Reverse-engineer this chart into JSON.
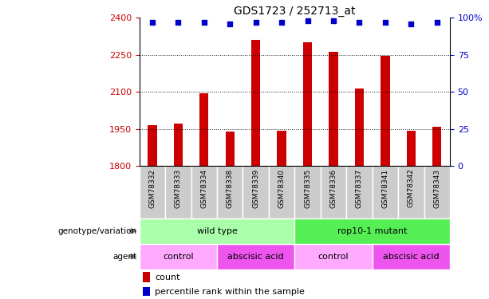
{
  "title": "GDS1723 / 252713_at",
  "samples": [
    "GSM78332",
    "GSM78333",
    "GSM78334",
    "GSM78338",
    "GSM78339",
    "GSM78340",
    "GSM78335",
    "GSM78336",
    "GSM78337",
    "GSM78341",
    "GSM78342",
    "GSM78343"
  ],
  "counts": [
    1965,
    1972,
    2093,
    1938,
    2310,
    1944,
    2300,
    2263,
    2115,
    2245,
    1944,
    1960
  ],
  "percentile_ranks": [
    97,
    97,
    97,
    96,
    97,
    97,
    98,
    98,
    97,
    97,
    96,
    97
  ],
  "ymin": 1800,
  "ymax": 2400,
  "yticks": [
    1800,
    1950,
    2100,
    2250,
    2400
  ],
  "right_yticks": [
    0,
    25,
    50,
    75,
    100
  ],
  "bar_color": "#cc0000",
  "dot_color": "#0000cc",
  "genotype_groups": [
    {
      "label": "wild type",
      "start": 0,
      "end": 6,
      "color": "#aaffaa"
    },
    {
      "label": "rop10-1 mutant",
      "start": 6,
      "end": 12,
      "color": "#55ee55"
    }
  ],
  "agent_groups": [
    {
      "label": "control",
      "start": 0,
      "end": 3,
      "color": "#ffaaff"
    },
    {
      "label": "abscisic acid",
      "start": 3,
      "end": 6,
      "color": "#ee55ee"
    },
    {
      "label": "control",
      "start": 6,
      "end": 9,
      "color": "#ffaaff"
    },
    {
      "label": "abscisic acid",
      "start": 9,
      "end": 12,
      "color": "#ee55ee"
    }
  ],
  "xlabel_color": "#cc0000",
  "ylabel_right_color": "#0000cc",
  "tick_label_bg": "#cccccc"
}
